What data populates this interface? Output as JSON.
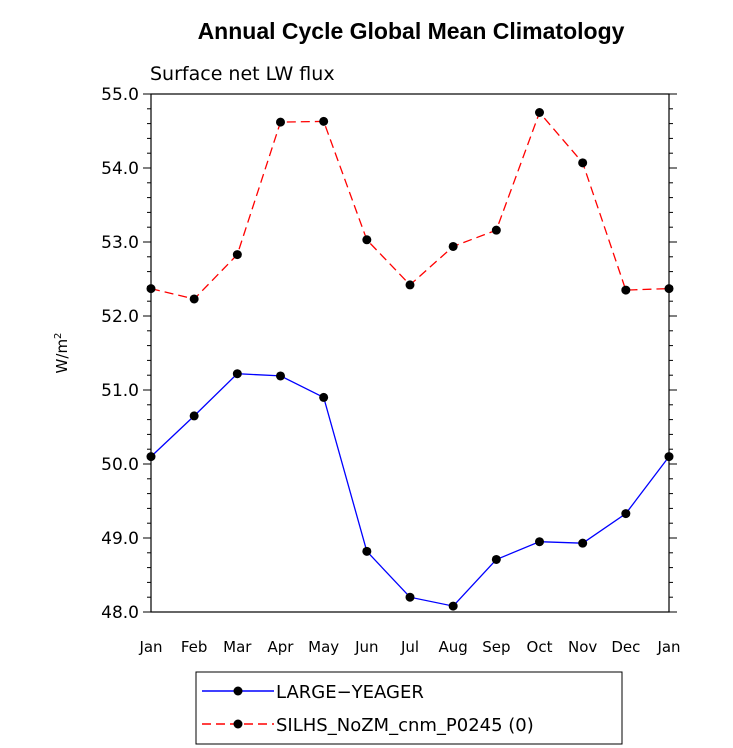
{
  "chart_data": {
    "type": "line",
    "title": "Annual Cycle Global Mean Climatology",
    "subtitle": "Surface net LW flux",
    "ylabel": "W/m",
    "ylabel_sup": "2",
    "xlabel": "",
    "ylim": [
      48.0,
      55.0
    ],
    "yticks": [
      "48.0",
      "49.0",
      "50.0",
      "51.0",
      "52.0",
      "53.0",
      "54.0",
      "55.0"
    ],
    "categories": [
      "Jan",
      "Feb",
      "Mar",
      "Apr",
      "May",
      "Jun",
      "Jul",
      "Aug",
      "Sep",
      "Oct",
      "Nov",
      "Dec",
      "Jan"
    ],
    "series": [
      {
        "name": "LARGE−YEAGER",
        "color": "#0000ff",
        "dash": "solid",
        "values": [
          50.1,
          50.65,
          51.22,
          51.19,
          50.9,
          48.82,
          48.2,
          48.08,
          48.71,
          48.95,
          48.93,
          49.33,
          50.1
        ]
      },
      {
        "name": "SILHS_NoZM_cnm_P0245 (0)",
        "color": "#ff0000",
        "dash": "dashed",
        "values": [
          52.37,
          52.23,
          52.83,
          54.62,
          54.63,
          53.03,
          52.42,
          52.94,
          53.16,
          54.75,
          54.07,
          52.35,
          52.37
        ]
      }
    ]
  }
}
